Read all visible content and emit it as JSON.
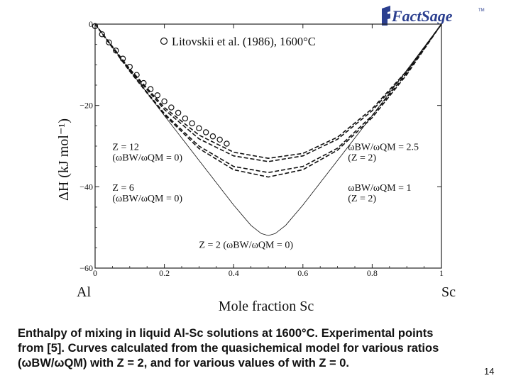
{
  "logo": {
    "text": "FactSage",
    "tm": "TM",
    "color": "#2b3f8f"
  },
  "chart_data": {
    "type": "line",
    "title": "",
    "xlabel": "Mole fraction Sc",
    "ylabel": "ΔH (kJ mol⁻¹)",
    "xlim": [
      0,
      1
    ],
    "ylim": [
      -60,
      0
    ],
    "x_ticks": [
      0,
      0.2,
      0.4,
      0.6,
      0.8,
      1
    ],
    "x_tick_labels": [
      "0",
      "0.2",
      "0.4",
      "0.6",
      "0.8",
      "1"
    ],
    "y_ticks": [
      0,
      -20,
      -40,
      -60
    ],
    "y_tick_labels": [
      "0",
      "−20",
      "−40",
      "−60"
    ],
    "x_left_end_label": "Al",
    "x_right_end_label": "Sc",
    "grid": false,
    "legend": {
      "marker": "○",
      "text": "Litovskii et al. (1986), 1600°C",
      "placement": "top"
    },
    "series": [
      {
        "style": "markers",
        "x": [
          0,
          0.02,
          0.04,
          0.06,
          0.08,
          0.1,
          0.12,
          0.14,
          0.16,
          0.18,
          0.2,
          0.22,
          0.24,
          0.26,
          0.28,
          0.3,
          0.32,
          0.34,
          0.36,
          0.38
        ],
        "y": [
          -0.5,
          -2.5,
          -4.5,
          -6.5,
          -8.5,
          -10.5,
          -12.5,
          -14.5,
          -16.0,
          -17.5,
          -19.0,
          -20.5,
          -21.8,
          -23.2,
          -24.4,
          -25.6,
          -26.6,
          -27.6,
          -28.4,
          -29.4
        ]
      },
      {
        "style": "dashed",
        "x": [
          0,
          0.1,
          0.2,
          0.3,
          0.4,
          0.5,
          0.6,
          0.7,
          0.8,
          0.9,
          1
        ],
        "y": [
          0,
          -11,
          -20.5,
          -27.3,
          -31.5,
          -33,
          -31.8,
          -27.8,
          -20.8,
          -11.5,
          0
        ]
      },
      {
        "style": "dashed",
        "x": [
          0,
          0.1,
          0.2,
          0.3,
          0.4,
          0.5,
          0.6,
          0.7,
          0.8,
          0.9,
          1
        ],
        "y": [
          0,
          -11.5,
          -22,
          -30,
          -35,
          -36.5,
          -35,
          -30.5,
          -22.5,
          -12,
          0
        ]
      },
      {
        "style": "dashed",
        "x": [
          0,
          0.1,
          0.2,
          0.3,
          0.4,
          0.5,
          0.6,
          0.7,
          0.8,
          0.9,
          1
        ],
        "y": [
          0,
          -11.2,
          -21,
          -28.2,
          -32.4,
          -33.8,
          -32.4,
          -28.3,
          -21.3,
          -11.7,
          0
        ]
      },
      {
        "style": "dashed",
        "x": [
          0,
          0.1,
          0.2,
          0.3,
          0.4,
          0.5,
          0.6,
          0.7,
          0.8,
          0.9,
          1
        ],
        "y": [
          0,
          -11.6,
          -22.3,
          -30.6,
          -35.8,
          -37.6,
          -35.8,
          -31,
          -23,
          -12.4,
          0
        ]
      },
      {
        "style": "solid-thin",
        "x": [
          0,
          0.1,
          0.2,
          0.3,
          0.35,
          0.4,
          0.45,
          0.48,
          0.5,
          0.52,
          0.55,
          0.6,
          0.65,
          0.7,
          0.8,
          0.9,
          1
        ],
        "y": [
          0,
          -11.3,
          -22.5,
          -33.5,
          -39,
          -44.5,
          -49.5,
          -51.5,
          -52,
          -51.5,
          -49.5,
          -44.5,
          -39,
          -33.5,
          -22.5,
          -11.3,
          0
        ]
      }
    ],
    "annotations": [
      {
        "lines": [
          "Z = 12",
          "(ωBW/ωQM = 0)"
        ],
        "x": 0.05,
        "y": -31
      },
      {
        "lines": [
          "Z = 6",
          "(ωBW/ωQM = 0)"
        ],
        "x": 0.05,
        "y": -41
      },
      {
        "lines": [
          "ωBW/ωQM = 2.5",
          "(Z = 2)"
        ],
        "x": 0.73,
        "y": -31
      },
      {
        "lines": [
          "ωBW/ωQM = 1",
          "(Z = 2)"
        ],
        "x": 0.73,
        "y": -41
      },
      {
        "lines": [
          "Z = 2 (ωBW/ωQM = 0)"
        ],
        "x": 0.3,
        "y": -55
      }
    ]
  },
  "caption": {
    "line1": "Enthalpy of mixing in liquid Al-Sc solutions at 1600°C. Experimental points",
    "line2": "from [5]. Curves calculated from the quasichemical model for various ratios",
    "line3": "(ωBW/ωQM) with Z = 2, and for various values of  with Z = 0."
  },
  "page_number": "14"
}
